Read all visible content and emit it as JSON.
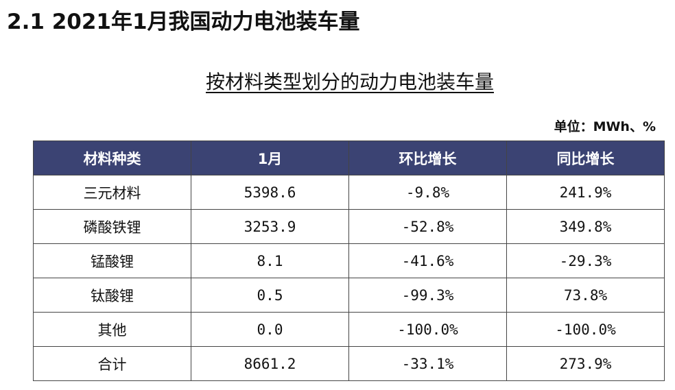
{
  "header": {
    "title": "2.1 2021年1月我国动力电池装车量",
    "subtitle": "按材料类型划分的动力电池装车量",
    "unit": "单位：MWh、%"
  },
  "table": {
    "columns": [
      "材料种类",
      "1月",
      "环比增长",
      "同比增长"
    ],
    "rows": [
      [
        "三元材料",
        "5398.6",
        "-9.8%",
        "241.9%"
      ],
      [
        "磷酸铁锂",
        "3253.9",
        "-52.8%",
        "349.8%"
      ],
      [
        "锰酸锂",
        "8.1",
        "-41.6%",
        "-29.3%"
      ],
      [
        "钛酸锂",
        "0.5",
        "-99.3%",
        "73.8%"
      ],
      [
        "其他",
        "0.0",
        "-100.0%",
        "-100.0%"
      ],
      [
        "合计",
        "8661.2",
        "-33.1%",
        "273.9%"
      ]
    ]
  }
}
